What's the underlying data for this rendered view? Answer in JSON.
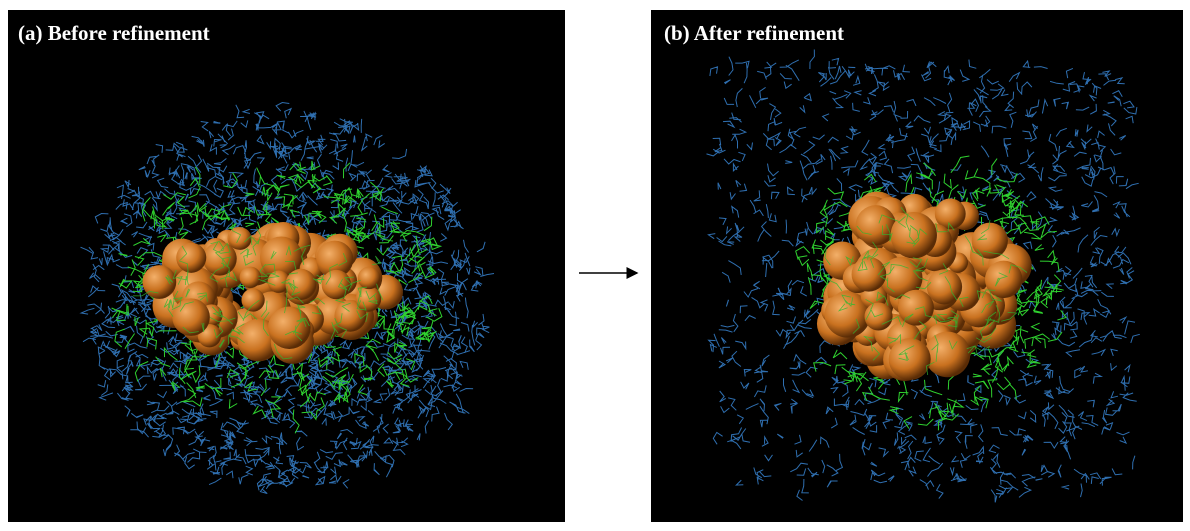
{
  "panels": [
    {
      "title": "(a) Before refinement"
    },
    {
      "title": "(b) After refinement"
    }
  ]
}
